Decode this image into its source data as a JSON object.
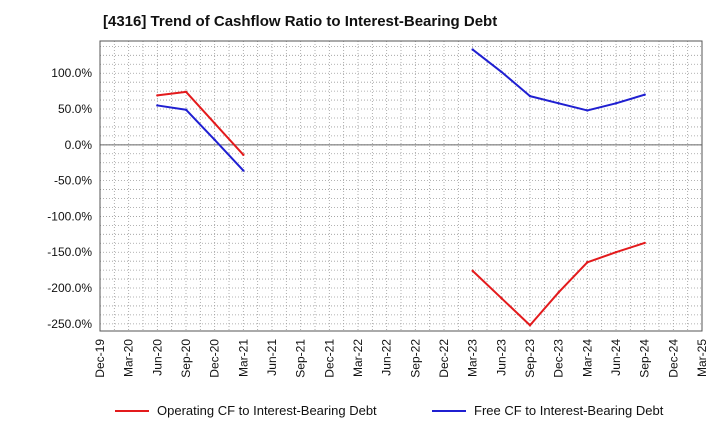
{
  "chart_data": {
    "type": "line",
    "title": "[4316]  Trend of Cashflow Ratio to Interest-Bearing Debt",
    "xlabel": "",
    "ylabel": "",
    "x": [
      "Dec-19",
      "Mar-20",
      "Jun-20",
      "Sep-20",
      "Dec-20",
      "Mar-21",
      "Jun-21",
      "Sep-21",
      "Dec-21",
      "Mar-22",
      "Jun-22",
      "Sep-22",
      "Dec-22",
      "Mar-23",
      "Jun-23",
      "Sep-23",
      "Dec-23",
      "Mar-24",
      "Jun-24",
      "Sep-24",
      "Dec-24",
      "Mar-25"
    ],
    "ylim": [
      -260,
      145
    ],
    "yticks": [
      100,
      50,
      0,
      -50,
      -100,
      -150,
      -200,
      -250
    ],
    "ytick_labels": [
      "100.0%",
      "50.0%",
      "0.0%",
      "-50.0%",
      "-100.0%",
      "-150.0%",
      "-200.0%",
      "-250.0%"
    ],
    "grid": true,
    "legend_position": "bottom",
    "series": [
      {
        "name": "Operating CF to Interest-Bearing Debt",
        "color": "#e31a1c",
        "values": [
          null,
          null,
          69,
          74,
          30,
          -14,
          null,
          null,
          null,
          null,
          null,
          null,
          null,
          -176,
          -214,
          -252,
          -206,
          -164,
          -150,
          -137,
          null,
          null
        ]
      },
      {
        "name": "Free CF to Interest-Bearing Debt",
        "color": "#1f1fd1",
        "values": [
          null,
          null,
          55,
          49,
          7,
          -36,
          null,
          null,
          null,
          null,
          null,
          null,
          null,
          133,
          102,
          68,
          58,
          48,
          58,
          70,
          null,
          null
        ]
      }
    ]
  }
}
